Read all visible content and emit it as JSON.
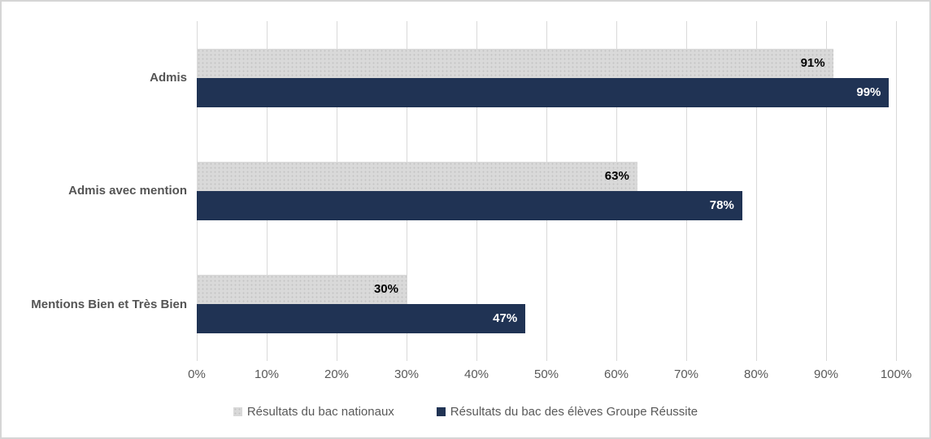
{
  "chart_data": {
    "type": "bar",
    "orientation": "horizontal",
    "title": "",
    "categories": [
      "Admis",
      "Admis avec mention",
      "Mentions Bien et Très Bien"
    ],
    "series": [
      {
        "name": "Résultats du bac nationaux",
        "values": [
          91,
          63,
          30
        ],
        "color": "#d9d9d9",
        "pattern": "dotted",
        "label_color": "#000000",
        "value_labels": [
          "91%",
          "63%",
          "30%"
        ]
      },
      {
        "name": "Résultats du bac des élèves Groupe Réussite",
        "values": [
          99,
          78,
          47
        ],
        "color": "#203354",
        "pattern": "solid",
        "label_color": "#ffffff",
        "value_labels": [
          "99%",
          "78%",
          "47%"
        ]
      }
    ],
    "value_suffix": "%",
    "x_axis": {
      "min": 0,
      "max": 100,
      "tick_step": 10,
      "tick_labels": [
        "0%",
        "10%",
        "20%",
        "30%",
        "40%",
        "50%",
        "60%",
        "70%",
        "80%",
        "90%",
        "100%"
      ]
    },
    "grid": true,
    "gridline_color": "#d9d9d9",
    "legend_position": "bottom",
    "category_label_color": "#545454",
    "axis_label_color": "#595959"
  }
}
